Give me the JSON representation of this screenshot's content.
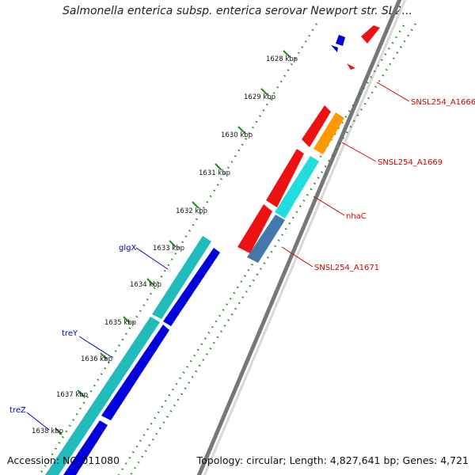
{
  "title": "Salmonella enterica subsp. enterica serovar Newport str. SL2...",
  "footer": {
    "accession": "Accession: NC_011080",
    "topology": "Topology: circular; Length: 4,827,641 bp; Genes: 4,721"
  },
  "ruler": {
    "ticks": [
      "1628 kbp",
      "1629 kbp",
      "1630 kbp",
      "1631 kbp",
      "1632 kbp",
      "1633 kbp",
      "1634 kbp",
      "1635 kbp",
      "1636 kbp",
      "1637 kbp",
      "1638 kbp"
    ]
  },
  "gene_labels": {
    "right": [
      "SNSL254_A1666",
      "SNSL254_A1669",
      "nhaC",
      "SNSL254_A1671"
    ],
    "left": [
      "glgX",
      "treY",
      "treZ"
    ]
  },
  "colors": {
    "forward_gene": "#ee1111",
    "orange_gene": "#ff9900",
    "cyan_gene": "#22dddd",
    "steelblue_gene": "#4477aa",
    "teal_gene": "#22bbbb",
    "blue_gene": "#0000dd",
    "dots": "#228822",
    "backbone": "#888888",
    "label_red": "#d40000",
    "label_blue": "#0000cc"
  }
}
